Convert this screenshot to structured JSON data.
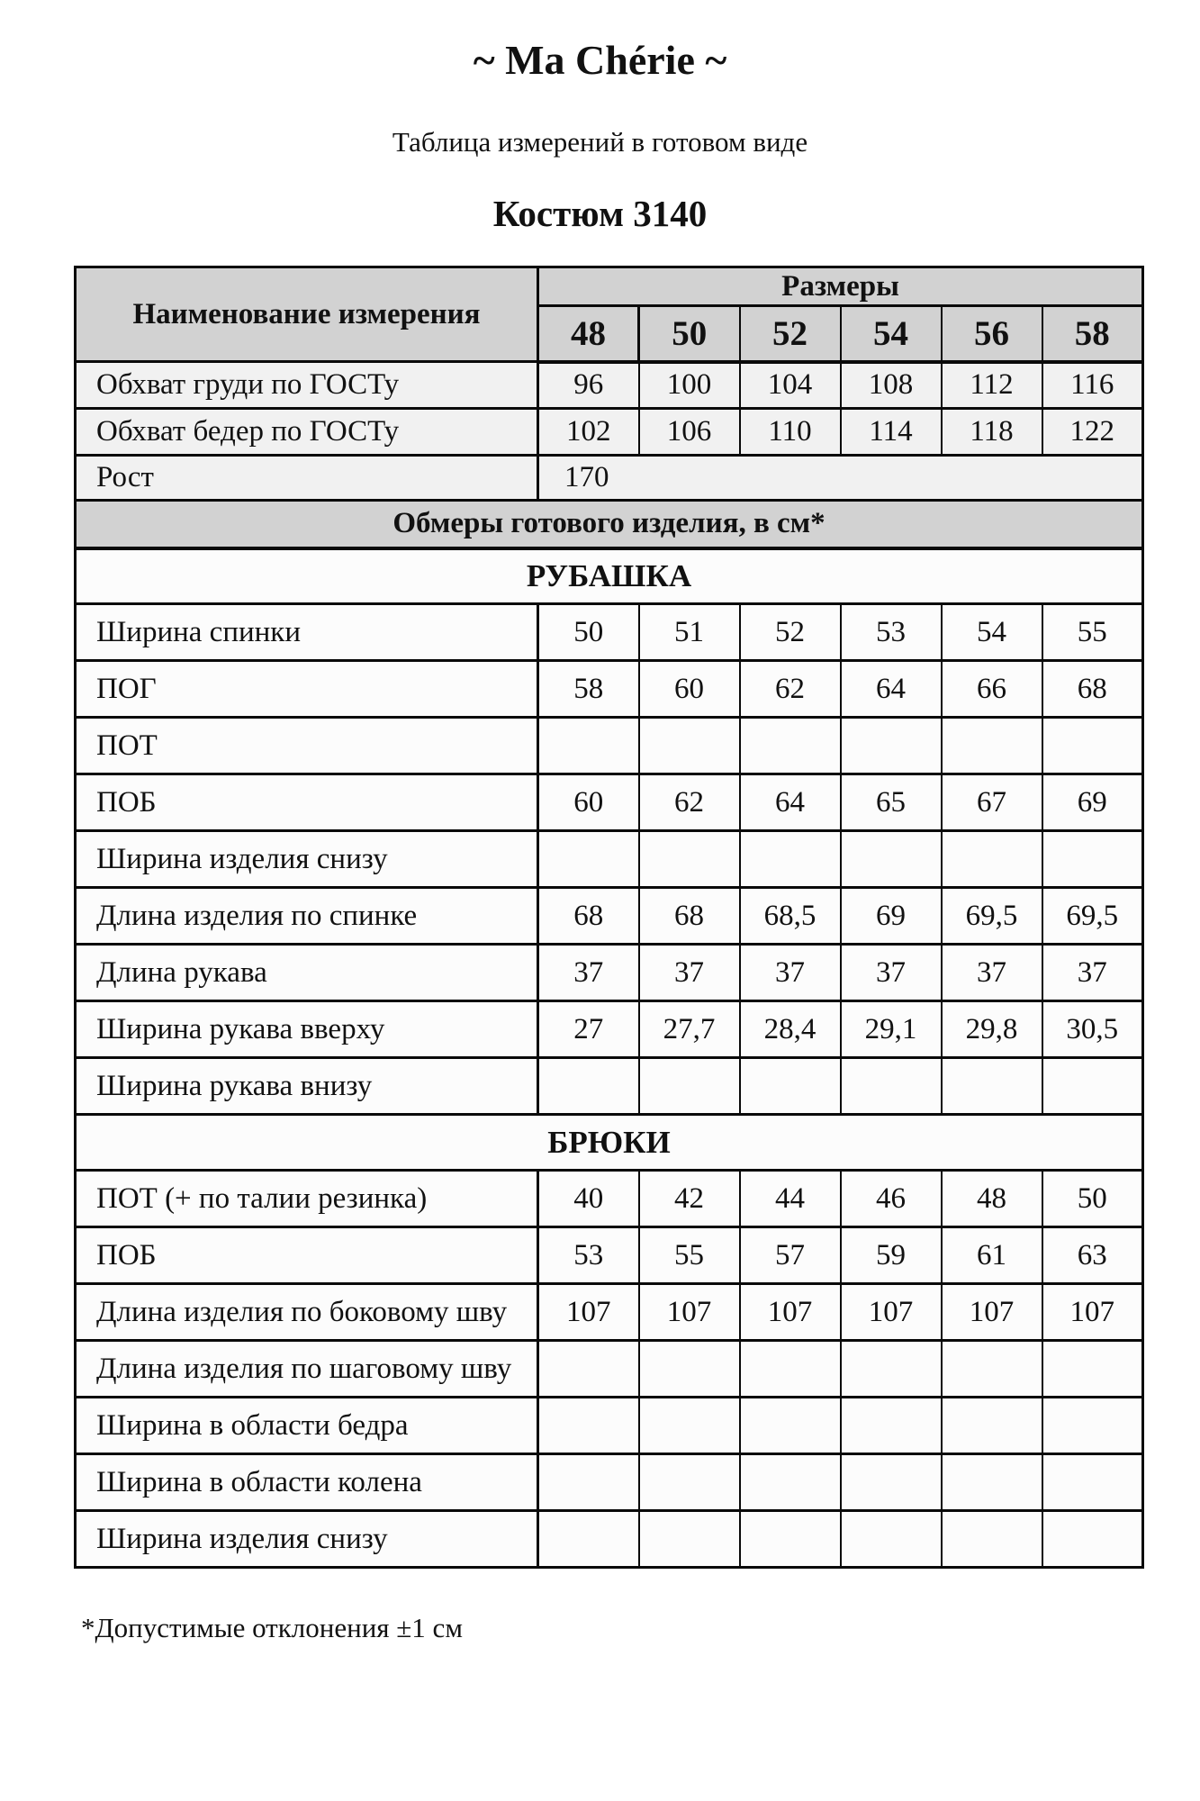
{
  "page": {
    "brand": "~ Ma Chérie ~",
    "subtitle": "Таблица измерений в готовом виде",
    "product": "Костюм 3140",
    "footnote": "*Допустимые отклонения ±1 см"
  },
  "colors": {
    "header_bg": "#d2d2d2",
    "gost_row_bg": "#f1f1f1",
    "data_row_bg": "#fcfcfc",
    "border": "#0a0a0a",
    "page_bg": "#ffffff"
  },
  "table": {
    "name_header": "Наименование измерения",
    "sizes_header": "Размеры",
    "sizes": [
      "48",
      "50",
      "52",
      "54",
      "56",
      "58"
    ],
    "gost_rows": [
      {
        "label": "Обхват груди по ГОСТу",
        "values": [
          "96",
          "100",
          "104",
          "108",
          "112",
          "116"
        ]
      },
      {
        "label": "Обхват бедер по ГОСТу",
        "values": [
          "102",
          "106",
          "110",
          "114",
          "118",
          "122"
        ]
      }
    ],
    "height_row": {
      "label": "Рост",
      "value": "170"
    },
    "band_label": "Обмеры готового изделия, в см*",
    "sections": [
      {
        "title": "РУБАШКА",
        "rows": [
          {
            "label": "Ширина спинки",
            "values": [
              "50",
              "51",
              "52",
              "53",
              "54",
              "55"
            ]
          },
          {
            "label": "ПОГ",
            "values": [
              "58",
              "60",
              "62",
              "64",
              "66",
              "68"
            ]
          },
          {
            "label": "ПОТ",
            "values": [
              "",
              "",
              "",
              "",
              "",
              ""
            ]
          },
          {
            "label": "ПОБ",
            "values": [
              "60",
              "62",
              "64",
              "65",
              "67",
              "69"
            ]
          },
          {
            "label": "Ширина изделия снизу",
            "values": [
              "",
              "",
              "",
              "",
              "",
              ""
            ]
          },
          {
            "label": "Длина изделия по спинке",
            "values": [
              "68",
              "68",
              "68,5",
              "69",
              "69,5",
              "69,5"
            ]
          },
          {
            "label": "Длина рукава",
            "values": [
              "37",
              "37",
              "37",
              "37",
              "37",
              "37"
            ]
          },
          {
            "label": "Ширина рукава вверху",
            "values": [
              "27",
              "27,7",
              "28,4",
              "29,1",
              "29,8",
              "30,5"
            ]
          },
          {
            "label": "Ширина рукава внизу",
            "values": [
              "",
              "",
              "",
              "",
              "",
              ""
            ]
          }
        ]
      },
      {
        "title": "БРЮКИ",
        "rows": [
          {
            "label": "ПОТ (+ по талии резинка)",
            "values": [
              "40",
              "42",
              "44",
              "46",
              "48",
              "50"
            ]
          },
          {
            "label": "ПОБ",
            "values": [
              "53",
              "55",
              "57",
              "59",
              "61",
              "63"
            ]
          },
          {
            "label": "Длина изделия по боковому шву",
            "values": [
              "107",
              "107",
              "107",
              "107",
              "107",
              "107"
            ]
          },
          {
            "label": "Длина изделия по шаговому шву",
            "values": [
              "",
              "",
              "",
              "",
              "",
              ""
            ]
          },
          {
            "label": "Ширина в области бедра",
            "values": [
              "",
              "",
              "",
              "",
              "",
              ""
            ]
          },
          {
            "label": "Ширина в области колена",
            "values": [
              "",
              "",
              "",
              "",
              "",
              ""
            ]
          },
          {
            "label": "Ширина изделия снизу",
            "values": [
              "",
              "",
              "",
              "",
              "",
              ""
            ]
          }
        ]
      }
    ]
  }
}
